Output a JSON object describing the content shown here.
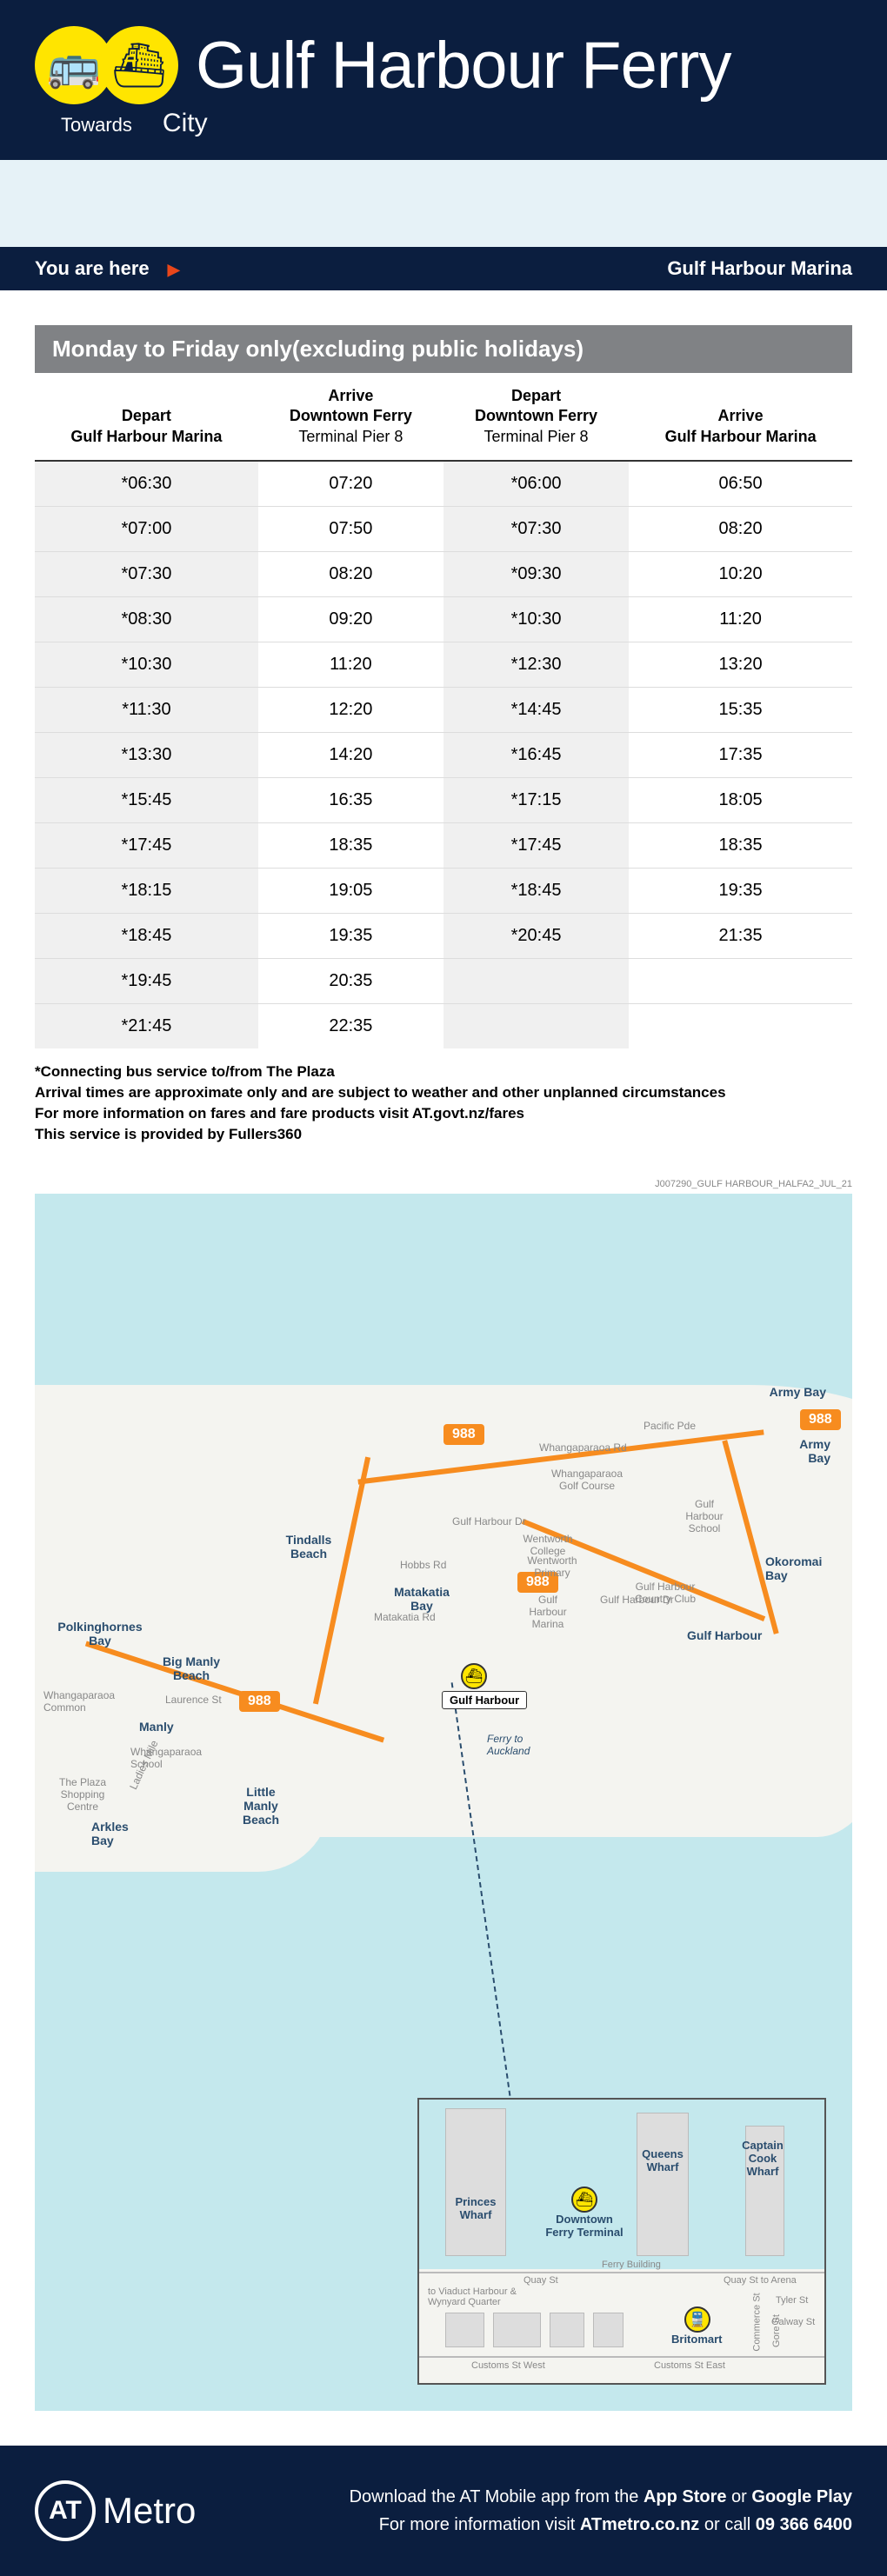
{
  "header": {
    "title": "Gulf Harbour Ferry",
    "towards_label": "Towards",
    "towards_value": "City"
  },
  "location_bar": {
    "you_are_here": "You are here",
    "stop_name": "Gulf Harbour Marina"
  },
  "timetable": {
    "title": "Monday to Friday only(excluding public holidays)",
    "columns": [
      {
        "l1": "Depart",
        "l2": "Gulf Harbour Marina"
      },
      {
        "l1": "Arrive",
        "l2": "Downtown Ferry",
        "l3": "Terminal Pier 8"
      },
      {
        "l1": "Depart",
        "l2": "Downtown Ferry",
        "l3": "Terminal Pier 8"
      },
      {
        "l1": "Arrive",
        "l2": "Gulf Harbour Marina"
      }
    ],
    "rows": [
      [
        "*06:30",
        "07:20",
        "*06:00",
        "06:50"
      ],
      [
        "*07:00",
        "07:50",
        "*07:30",
        "08:20"
      ],
      [
        "*07:30",
        "08:20",
        "*09:30",
        "10:20"
      ],
      [
        "*08:30",
        "09:20",
        "*10:30",
        "11:20"
      ],
      [
        "*10:30",
        "11:20",
        "*12:30",
        "13:20"
      ],
      [
        "*11:30",
        "12:20",
        "*14:45",
        "15:35"
      ],
      [
        "*13:30",
        "14:20",
        "*16:45",
        "17:35"
      ],
      [
        "*15:45",
        "16:35",
        "*17:15",
        "18:05"
      ],
      [
        "*17:45",
        "18:35",
        "*17:45",
        "18:35"
      ],
      [
        "*18:15",
        "19:05",
        "*18:45",
        "19:35"
      ],
      [
        "*18:45",
        "19:35",
        "*20:45",
        "21:35"
      ],
      [
        "*19:45",
        "20:35",
        "",
        ""
      ],
      [
        "*21:45",
        "22:35",
        "",
        ""
      ]
    ],
    "notes": [
      "*Connecting bus service to/from The Plaza",
      "Arrival times are approximate only and are subject to weather and other unplanned circumstances",
      "For more information on fares and fare products visit AT.govt.nz/fares",
      "This service is provided by Fullers360"
    ]
  },
  "map": {
    "route_number": "988",
    "places": {
      "army_bay": "Army Bay",
      "gulf_harbour": "Gulf Harbour",
      "okoromai_bay": "Okoromai Bay",
      "matakatia_bay": "Matakatia Bay",
      "tindalls_beach": "Tindalls Beach",
      "manly": "Manly",
      "big_manly": "Big Manly Beach",
      "little_manly": "Little Manly Beach",
      "arkles_bay": "Arkles Bay",
      "polkinghornes": "Polkinghornes Bay",
      "ferry_to": "Ferry to Auckland",
      "gulf_harbour_stop": "Gulf Harbour",
      "whangaparaoa_rd": "Whangaparaoa Rd",
      "gulf_harbour_dr": "Gulf Harbour Dr",
      "pacific_pde": "Pacific Pde",
      "golf_course": "Whangaparaoa Golf Course",
      "wentworth": "Wentworth College",
      "wentworth_p": "Wentworth Primary",
      "gh_school": "Gulf Harbour School",
      "gh_marina": "Gulf Harbour Marina",
      "gh_cc": "Gulf Harbour Country Club",
      "matakatia_rd": "Matakatia Rd",
      "hobbs_rd": "Hobbs Rd",
      "laurence_st": "Laurence St",
      "whanga_common": "Whangaparaoa Common",
      "whanga_school": "Whangaparaoa School",
      "plaza": "The Plaza Shopping Centre",
      "ladies_mile": "Ladies Mile"
    },
    "inset": {
      "downtown": "Downtown Ferry Terminal",
      "britomart": "Britomart",
      "princes": "Princes Wharf",
      "queens": "Queens Wharf",
      "captain": "Captain Cook Wharf",
      "quay_st": "Quay St",
      "quay_st_arena": "Quay St to Arena",
      "customs_w": "Customs St West",
      "customs_e": "Customs St East",
      "viaduct": "to Viaduct Harbour & Wynyard Quarter",
      "ferry_building": "Ferry Building",
      "tyler": "Tyler St",
      "galway": "Galway St",
      "commerce": "Commerce St",
      "gore": "Gore St"
    }
  },
  "footer": {
    "brand": "Metro",
    "line1_a": "Download the AT Mobile app from the ",
    "line1_b": "App Store",
    "line1_c": " or ",
    "line1_d": "Google Play",
    "line2_a": "For more information visit ",
    "line2_b": "ATmetro.co.nz",
    "line2_c": " or call ",
    "line2_d": "09 366 6400"
  },
  "doc_code": "J007290_GULF HARBOUR_HALFA2_JUL_21",
  "colors": {
    "navy": "#0b1e3f",
    "yellow": "#ffe500",
    "orange": "#f78c1f",
    "grey_header": "#808285",
    "water": "#c4e8ed",
    "land": "#f4f4f0"
  }
}
